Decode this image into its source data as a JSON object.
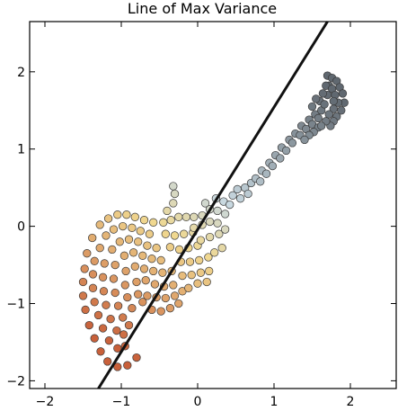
{
  "chart_data": {
    "type": "scatter",
    "title": "Line of Max Variance",
    "xlabel": "",
    "ylabel": "",
    "xlim": [
      -2.2,
      2.6
    ],
    "ylim": [
      -2.1,
      2.65
    ],
    "xticks": [
      -2,
      -1,
      0,
      1,
      2
    ],
    "yticks": [
      -2,
      -1,
      0,
      1,
      2
    ],
    "xtick_labels": [
      "−2",
      "−1",
      "0",
      "1",
      "2"
    ],
    "ytick_labels": [
      "−2",
      "−1",
      "0",
      "1",
      "2"
    ],
    "grid": false,
    "legend": "none",
    "line_of_max_variance": {
      "color": "#111111",
      "points": [
        [
          -1.3,
          -2.1
        ],
        [
          1.7,
          2.65
        ]
      ]
    },
    "colors": {
      "low": "#c8603a",
      "mid": "#f0d890",
      "high_light": "#c8d8e0",
      "high": "#606870"
    },
    "series": [
      {
        "points": [
          [
            -1.45,
            -0.35
          ],
          [
            -1.48,
            -0.55
          ],
          [
            -1.5,
            -0.72
          ],
          [
            -1.5,
            -0.9
          ],
          [
            -1.47,
            -1.08
          ],
          [
            -1.42,
            -1.28
          ],
          [
            -1.35,
            -1.45
          ],
          [
            -1.27,
            -1.62
          ],
          [
            -1.18,
            -1.75
          ],
          [
            -1.05,
            -1.82
          ],
          [
            -0.92,
            -1.8
          ],
          [
            -0.8,
            -1.7
          ],
          [
            -1.38,
            -0.15
          ],
          [
            -1.28,
            0.02
          ],
          [
            -1.17,
            0.1
          ],
          [
            -1.05,
            0.15
          ],
          [
            -0.93,
            0.15
          ],
          [
            -0.82,
            0.12
          ],
          [
            -0.7,
            0.08
          ],
          [
            -0.58,
            0.05
          ],
          [
            -1.35,
            -0.45
          ],
          [
            -1.37,
            -0.62
          ],
          [
            -1.37,
            -0.8
          ],
          [
            -1.35,
            -0.98
          ],
          [
            -1.3,
            -1.15
          ],
          [
            -1.24,
            -1.32
          ],
          [
            -1.16,
            -1.48
          ],
          [
            -1.05,
            -1.58
          ],
          [
            -0.95,
            -1.55
          ],
          [
            -1.28,
            -0.28
          ],
          [
            -1.2,
            -0.12
          ],
          [
            -1.1,
            -0.04
          ],
          [
            -0.98,
            0.0
          ],
          [
            -0.86,
            -0.02
          ],
          [
            -0.75,
            -0.06
          ],
          [
            -0.63,
            -0.1
          ],
          [
            -1.22,
            -0.48
          ],
          [
            -1.24,
            -0.66
          ],
          [
            -1.23,
            -0.84
          ],
          [
            -1.2,
            -1.02
          ],
          [
            -1.14,
            -1.2
          ],
          [
            -1.06,
            -1.35
          ],
          [
            -0.97,
            -1.4
          ],
          [
            -1.12,
            -0.3
          ],
          [
            -1.02,
            -0.2
          ],
          [
            -0.9,
            -0.17
          ],
          [
            -0.78,
            -0.2
          ],
          [
            -0.66,
            -0.25
          ],
          [
            -0.54,
            -0.28
          ],
          [
            -1.08,
            -0.5
          ],
          [
            -1.1,
            -0.68
          ],
          [
            -1.08,
            -0.86
          ],
          [
            -1.04,
            -1.03
          ],
          [
            -0.98,
            -1.18
          ],
          [
            -0.9,
            -1.28
          ],
          [
            -0.96,
            -0.38
          ],
          [
            -0.84,
            -0.34
          ],
          [
            -0.72,
            -0.38
          ],
          [
            -0.6,
            -0.42
          ],
          [
            -0.48,
            -0.44
          ],
          [
            -0.94,
            -0.58
          ],
          [
            -0.95,
            -0.76
          ],
          [
            -0.92,
            -0.92
          ],
          [
            -0.86,
            -1.06
          ],
          [
            -0.82,
            -0.52
          ],
          [
            -0.7,
            -0.55
          ],
          [
            -0.58,
            -0.58
          ],
          [
            -0.46,
            -0.6
          ],
          [
            -0.34,
            -0.58
          ],
          [
            -0.8,
            -0.72
          ],
          [
            -0.78,
            -0.88
          ],
          [
            -0.72,
            -0.98
          ],
          [
            -0.68,
            -0.7
          ],
          [
            -0.56,
            -0.75
          ],
          [
            -0.44,
            -0.78
          ],
          [
            -0.32,
            -0.76
          ],
          [
            -0.66,
            -0.9
          ],
          [
            -0.54,
            -0.92
          ],
          [
            -0.42,
            -0.93
          ],
          [
            -0.3,
            -0.9
          ],
          [
            -0.2,
            -0.84
          ],
          [
            -0.6,
            -1.08
          ],
          [
            -0.48,
            -1.1
          ],
          [
            -0.36,
            -1.06
          ],
          [
            -0.25,
            -1.0
          ],
          [
            -0.45,
            0.05
          ],
          [
            -0.35,
            0.08
          ],
          [
            -0.25,
            0.12
          ],
          [
            -0.15,
            0.12
          ],
          [
            -0.05,
            0.12
          ],
          [
            -0.42,
            -0.1
          ],
          [
            -0.3,
            -0.12
          ],
          [
            -0.18,
            -0.1
          ],
          [
            -0.06,
            -0.08
          ],
          [
            -0.36,
            -0.27
          ],
          [
            -0.24,
            -0.3
          ],
          [
            -0.12,
            -0.28
          ],
          [
            0.0,
            -0.25
          ],
          [
            -0.22,
            -0.46
          ],
          [
            -0.1,
            -0.46
          ],
          [
            0.02,
            -0.44
          ],
          [
            0.14,
            -0.4
          ],
          [
            -0.2,
            -0.64
          ],
          [
            -0.08,
            -0.63
          ],
          [
            0.04,
            -0.6
          ],
          [
            0.15,
            -0.58
          ],
          [
            -0.12,
            -0.8
          ],
          [
            0.0,
            -0.74
          ],
          [
            0.12,
            -0.72
          ],
          [
            -0.4,
            0.2
          ],
          [
            -0.32,
            0.3
          ],
          [
            -0.3,
            0.42
          ],
          [
            -0.32,
            0.52
          ],
          [
            -0.05,
            -0.02
          ],
          [
            0.06,
            0.02
          ],
          [
            0.16,
            0.06
          ],
          [
            0.26,
            0.04
          ],
          [
            0.06,
            0.14
          ],
          [
            0.16,
            0.22
          ],
          [
            0.26,
            0.2
          ],
          [
            0.36,
            0.16
          ],
          [
            0.04,
            -0.18
          ],
          [
            0.16,
            -0.14
          ],
          [
            0.28,
            -0.1
          ],
          [
            0.36,
            -0.04
          ],
          [
            0.22,
            -0.34
          ],
          [
            0.32,
            -0.28
          ],
          [
            0.1,
            0.3
          ],
          [
            0.24,
            0.36
          ],
          [
            0.34,
            0.32
          ],
          [
            0.42,
            0.28
          ],
          [
            0.46,
            0.4
          ],
          [
            0.56,
            0.36
          ],
          [
            0.52,
            0.48
          ],
          [
            0.62,
            0.5
          ],
          [
            0.66,
            0.42
          ],
          [
            0.7,
            0.56
          ],
          [
            0.76,
            0.62
          ],
          [
            0.82,
            0.58
          ],
          [
            0.84,
            0.72
          ],
          [
            0.9,
            0.68
          ],
          [
            0.94,
            0.82
          ],
          [
            0.98,
            0.78
          ],
          [
            1.02,
            0.92
          ],
          [
            1.08,
            0.88
          ],
          [
            1.1,
            1.02
          ],
          [
            1.16,
            0.98
          ],
          [
            1.2,
            1.12
          ],
          [
            1.24,
            1.08
          ],
          [
            1.28,
            1.2
          ],
          [
            1.34,
            1.18
          ],
          [
            1.36,
            1.3
          ],
          [
            1.42,
            1.26
          ],
          [
            1.46,
            1.38
          ],
          [
            1.5,
            1.32
          ],
          [
            1.54,
            1.45
          ],
          [
            1.58,
            1.4
          ],
          [
            1.62,
            1.5
          ],
          [
            1.6,
            1.62
          ],
          [
            1.66,
            1.58
          ],
          [
            1.7,
            1.7
          ],
          [
            1.72,
            1.82
          ],
          [
            1.7,
            1.95
          ],
          [
            1.76,
            1.92
          ],
          [
            1.82,
            1.88
          ],
          [
            1.86,
            1.8
          ],
          [
            1.9,
            1.72
          ],
          [
            1.92,
            1.6
          ],
          [
            1.88,
            1.5
          ],
          [
            1.82,
            1.42
          ],
          [
            1.78,
            1.36
          ],
          [
            1.74,
            1.3
          ],
          [
            1.64,
            1.72
          ],
          [
            1.68,
            1.82
          ],
          [
            1.76,
            1.78
          ],
          [
            1.8,
            1.7
          ],
          [
            1.84,
            1.6
          ],
          [
            1.78,
            1.52
          ],
          [
            1.72,
            1.45
          ],
          [
            1.68,
            1.36
          ],
          [
            1.58,
            1.28
          ],
          [
            1.52,
            1.22
          ],
          [
            1.46,
            1.18
          ],
          [
            1.4,
            1.12
          ],
          [
            1.55,
            1.65
          ],
          [
            1.5,
            1.55
          ],
          [
            1.62,
            1.3
          ],
          [
            1.78,
            1.62
          ]
        ]
      }
    ]
  }
}
